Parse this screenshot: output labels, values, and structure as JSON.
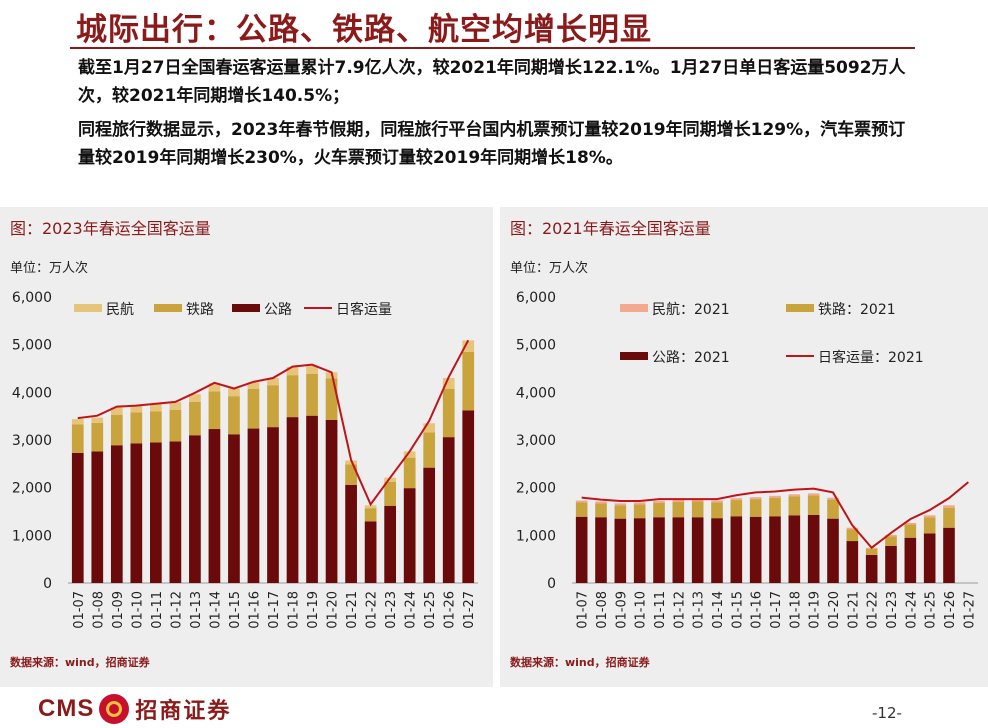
{
  "page": {
    "title": "城际出行：公路、铁路、航空均增长明显",
    "bullets": [
      "截至1月27日全国春运客运量累计7.9亿人次，较2021年同期增长122.1%。1月27日单日客运量5092万人次，较2021年同期增长140.5%；",
      "同程旅行数据显示，2023年春节假期，同程旅行平台国内机票预订量较2019年同期增长129%，汽车票预订量较2019年同期增长230%，火车票预订量较2019年同期增长18%。"
    ],
    "page_number": "-12-",
    "logo": {
      "latin": "CMS",
      "chinese": "招商证券"
    }
  },
  "colors": {
    "title": "#8b1a1a",
    "aviation_2023": "#e6c47a",
    "rail": "#c9a33b",
    "road": "#6b0a0a",
    "line": "#c0141b",
    "aviation_2021": "#f2a98f"
  },
  "charts": {
    "left": {
      "panel_title": "图：2023年春运全国客运量",
      "unit": "单位：万人次",
      "source": "数据来源：wind，招商证券"
    },
    "right": {
      "panel_title": "图：2021年春运全国客运量",
      "unit": "单位：万人次",
      "source": "数据来源：wind，招商证券"
    }
  },
  "chart_data": [
    {
      "type": "bar",
      "stacked": true,
      "title": "图：2023年春运全国客运量",
      "ylabel": "单位：万人次",
      "ylim": [
        0,
        6000
      ],
      "yticks": [
        "0",
        "1,000",
        "2,000",
        "3,000",
        "4,000",
        "5,000",
        "6,000"
      ],
      "categories": [
        "01-07",
        "01-08",
        "01-09",
        "01-10",
        "01-11",
        "01-12",
        "01-13",
        "01-14",
        "01-15",
        "01-16",
        "01-17",
        "01-18",
        "01-19",
        "01-20",
        "01-21",
        "01-22",
        "01-23",
        "01-24",
        "01-25",
        "01-26",
        "01-27"
      ],
      "legend": [
        "民航",
        "铁路",
        "公路",
        "日客运量"
      ],
      "legend_position": "top",
      "series": [
        {
          "name": "公路",
          "kind": "bar",
          "values": [
            2730,
            2760,
            2890,
            2930,
            2950,
            2970,
            3100,
            3230,
            3120,
            3240,
            3270,
            3480,
            3510,
            3420,
            2060,
            1290,
            1620,
            1990,
            2420,
            3060,
            3620
          ]
        },
        {
          "name": "铁路",
          "kind": "bar",
          "values": [
            600,
            600,
            640,
            650,
            650,
            660,
            700,
            790,
            800,
            830,
            880,
            880,
            880,
            870,
            430,
            280,
            500,
            640,
            740,
            1010,
            1230
          ]
        },
        {
          "name": "民航",
          "kind": "bar",
          "values": [
            110,
            110,
            150,
            140,
            160,
            160,
            160,
            170,
            160,
            140,
            150,
            170,
            170,
            130,
            80,
            60,
            90,
            130,
            190,
            230,
            240
          ]
        },
        {
          "name": "日客运量",
          "kind": "line",
          "values": [
            3460,
            3510,
            3700,
            3720,
            3760,
            3800,
            3990,
            4200,
            4080,
            4220,
            4300,
            4540,
            4580,
            4420,
            2580,
            1650,
            2210,
            2760,
            3400,
            4320,
            5092
          ]
        }
      ]
    },
    {
      "type": "bar",
      "stacked": true,
      "title": "图：2021年春运全国客运量",
      "ylabel": "单位：万人次",
      "ylim": [
        0,
        6000
      ],
      "yticks": [
        "0",
        "1,000",
        "2,000",
        "3,000",
        "4,000",
        "5,000",
        "6,000"
      ],
      "categories": [
        "01-07",
        "01-08",
        "01-09",
        "01-10",
        "01-11",
        "01-12",
        "01-13",
        "01-14",
        "01-15",
        "01-16",
        "01-17",
        "01-18",
        "01-19",
        "01-20",
        "01-21",
        "01-22",
        "01-23",
        "01-24",
        "01-25",
        "01-26",
        "01-27"
      ],
      "legend": [
        "民航：2021",
        "铁路：2021",
        "公路：2021",
        "日客运量：2021"
      ],
      "legend_position": "top",
      "series": [
        {
          "name": "公路：2021",
          "kind": "bar",
          "values": [
            1390,
            1380,
            1350,
            1360,
            1380,
            1380,
            1380,
            1360,
            1400,
            1390,
            1400,
            1420,
            1430,
            1350,
            880,
            590,
            780,
            950,
            1040,
            1160,
            null
          ]
        },
        {
          "name": "铁路：2021",
          "kind": "bar",
          "values": [
            300,
            290,
            280,
            290,
            300,
            320,
            330,
            330,
            340,
            370,
            390,
            400,
            410,
            400,
            250,
            130,
            200,
            280,
            340,
            420,
            null
          ]
        },
        {
          "name": "民航：2021",
          "kind": "bar",
          "values": [
            40,
            40,
            40,
            40,
            40,
            40,
            40,
            40,
            40,
            40,
            40,
            40,
            40,
            40,
            30,
            20,
            30,
            30,
            40,
            50,
            null
          ]
        },
        {
          "name": "日客运量：2021",
          "kind": "line",
          "values": [
            1790,
            1750,
            1720,
            1720,
            1760,
            1760,
            1760,
            1760,
            1840,
            1900,
            1920,
            1960,
            1980,
            1900,
            1210,
            740,
            1050,
            1340,
            1530,
            1780,
            2117
          ]
        }
      ]
    }
  ]
}
